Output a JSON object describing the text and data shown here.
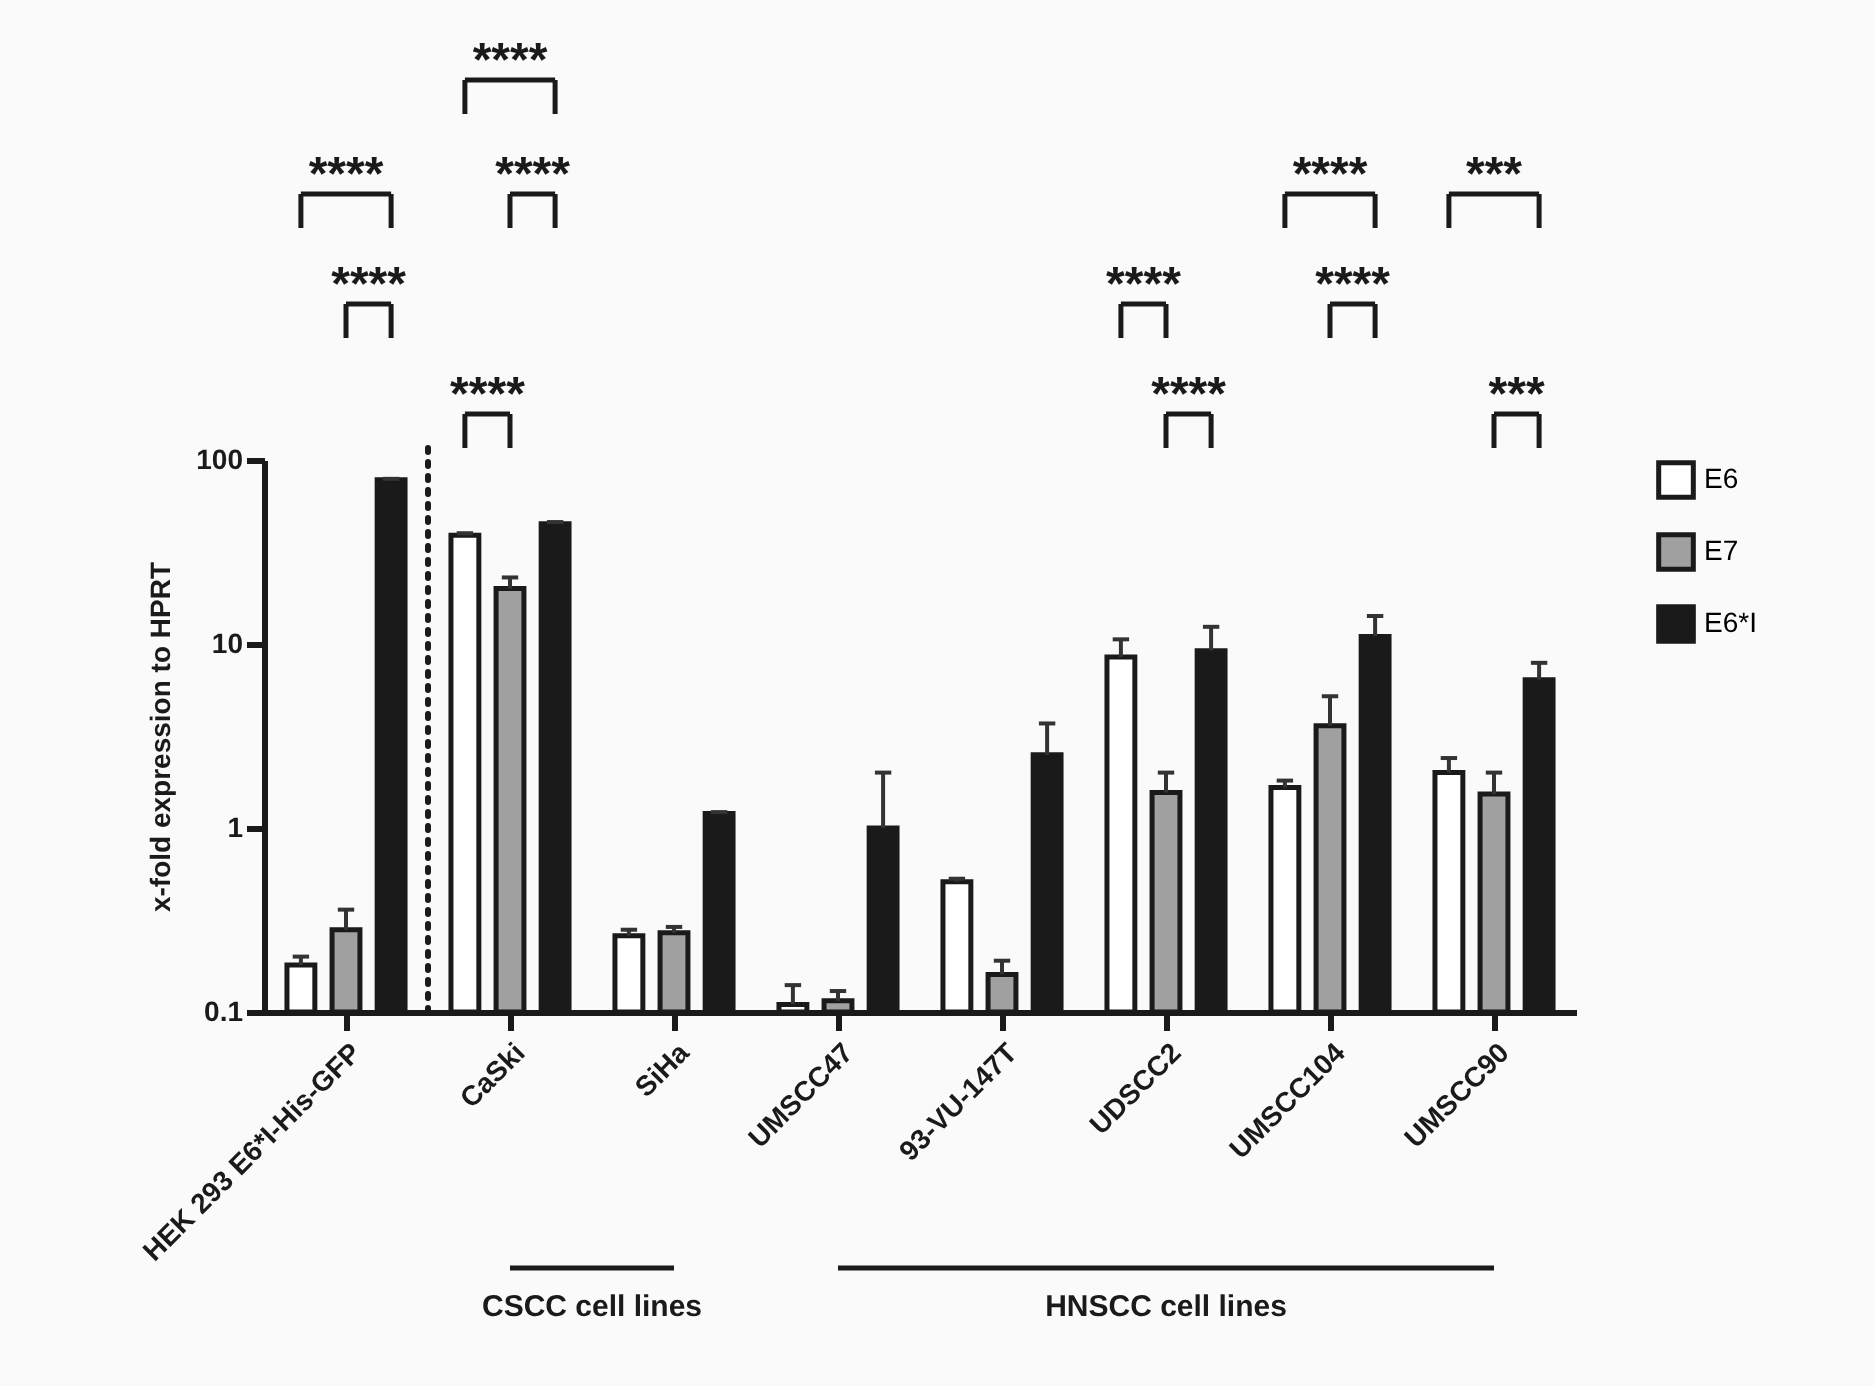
{
  "chart_data": {
    "type": "bar",
    "ylabel": "x-fold expression to HPRT",
    "categories": [
      "HEK 293 E6*I-His-GFP",
      "CaSki",
      "SiHa",
      "UMSCC47",
      "93-VU-147T",
      "UDSCC2",
      "UMSCC104",
      "UMSCC90"
    ],
    "series": [
      {
        "name": "E6",
        "color": "#ffffff",
        "values": [
          0.18,
          39,
          0.26,
          0.11,
          0.51,
          8.5,
          1.66,
          2.0
        ],
        "errors": [
          [
            0.18,
            0.2
          ],
          [
            39,
            40
          ],
          [
            0.26,
            0.28
          ],
          [
            0.11,
            0.14
          ],
          [
            0.51,
            0.53
          ],
          [
            8.5,
            10.6
          ],
          [
            1.66,
            1.81
          ],
          [
            2.0,
            2.4
          ]
        ]
      },
      {
        "name": "E7",
        "color": "#a0a0a0",
        "values": [
          0.28,
          20,
          0.27,
          0.115,
          0.16,
          1.56,
          3.6,
          1.53
        ],
        "errors": [
          [
            0.28,
            0.36
          ],
          [
            20,
            23
          ],
          [
            0.27,
            0.29
          ],
          [
            0.115,
            0.13
          ],
          [
            0.16,
            0.19
          ],
          [
            1.56,
            2.0
          ],
          [
            3.6,
            5.2
          ],
          [
            1.53,
            2.0
          ]
        ]
      },
      {
        "name": "E6*I",
        "color": "#1a1a1a",
        "values": [
          78,
          45,
          1.2,
          1.0,
          2.5,
          9.2,
          11,
          6.4
        ],
        "errors": [
          [
            78,
            79
          ],
          [
            45,
            46
          ],
          [
            1.2,
            1.22
          ],
          [
            1.0,
            2.0
          ],
          [
            2.5,
            3.7
          ],
          [
            9.2,
            12.4
          ],
          [
            11,
            14.2
          ],
          [
            6.4,
            7.9
          ]
        ]
      }
    ],
    "ylim": [
      0.1,
      100
    ],
    "yticks": [
      0.1,
      1,
      10,
      100
    ],
    "log": "y",
    "grid": false,
    "legend": "right",
    "annotations": [
      "****",
      "****",
      "****",
      "****",
      "****",
      "****",
      "****",
      "****",
      "****",
      "***",
      "***",
      "CSCC cell lines",
      "HNSCC cell lines"
    ]
  }
}
